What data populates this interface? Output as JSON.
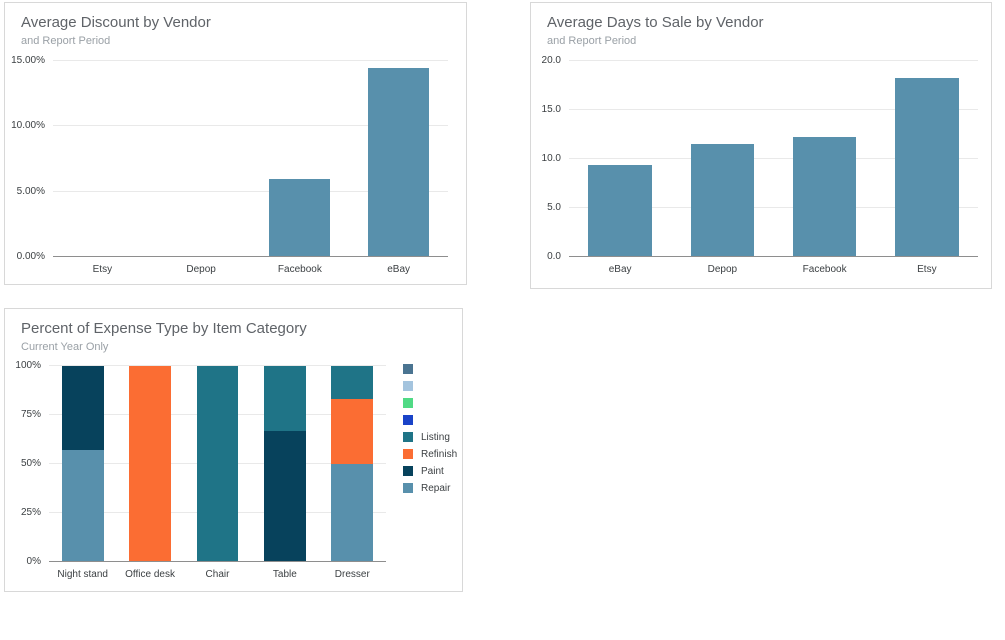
{
  "page": {
    "background": "#ffffff",
    "card_border": "#d8d8d8",
    "title_color": "#5f6368",
    "subtitle_color": "#9aa0a6",
    "axis_label_color": "#3c4043",
    "gridline_color": "#e9e9e9",
    "axis_line_color": "#8e8e8e"
  },
  "chart_data": [
    {
      "type": "bar",
      "title": "Average Discount by Vendor",
      "subtitle": "and Report Period",
      "categories": [
        "Etsy",
        "Depop",
        "Facebook",
        "eBay"
      ],
      "values": [
        0,
        0,
        6.0,
        14.5
      ],
      "bar_color": "#5890ac",
      "ylim": [
        0,
        15
      ],
      "yticks": [
        {
          "value": 0,
          "label": "0.00%"
        },
        {
          "value": 5,
          "label": "5.00%"
        },
        {
          "value": 10,
          "label": "10.00%"
        },
        {
          "value": 15,
          "label": "15.00%"
        }
      ],
      "grid": true,
      "legend": null
    },
    {
      "type": "bar",
      "title": "Average Days to Sale by Vendor",
      "subtitle": "and Report Period",
      "categories": [
        "eBay",
        "Depop",
        "Facebook",
        "Etsy"
      ],
      "values": [
        9.4,
        11.5,
        12.2,
        18.3
      ],
      "bar_color": "#5890ac",
      "ylim": [
        0,
        20
      ],
      "yticks": [
        {
          "value": 0,
          "label": "0.0"
        },
        {
          "value": 5,
          "label": "5.0"
        },
        {
          "value": 10,
          "label": "10.0"
        },
        {
          "value": 15,
          "label": "15.0"
        },
        {
          "value": 20,
          "label": "20.0"
        }
      ],
      "grid": true,
      "legend": null
    },
    {
      "type": "bar",
      "stacked": true,
      "title": "Percent of Expense Type by Item Category",
      "subtitle": "Current Year Only",
      "categories": [
        "Night stand",
        "Office desk",
        "Chair",
        "Table",
        "Dresser"
      ],
      "series": [
        {
          "name": "Repair",
          "color": "#5890ac",
          "values": [
            57,
            0,
            0,
            0,
            50
          ]
        },
        {
          "name": "Refinish",
          "color": "#fb6d33",
          "values": [
            0,
            100,
            0,
            0,
            33.3
          ]
        },
        {
          "name": "Paint",
          "color": "#07425c",
          "values": [
            43,
            0,
            0,
            66.7,
            0
          ]
        },
        {
          "name": "Listing",
          "color": "#1f7487",
          "values": [
            0,
            0,
            100,
            33.3,
            16.7
          ]
        }
      ],
      "ylim": [
        0,
        100
      ],
      "yticks": [
        {
          "value": 0,
          "label": "0%"
        },
        {
          "value": 25,
          "label": "25%"
        },
        {
          "value": 50,
          "label": "50%"
        },
        {
          "value": 75,
          "label": "75%"
        },
        {
          "value": 100,
          "label": "100%"
        }
      ],
      "grid": true,
      "legend": {
        "position": "right",
        "entries": [
          {
            "label": "",
            "color": "#4a7491"
          },
          {
            "label": "",
            "color": "#a4c4de"
          },
          {
            "label": "",
            "color": "#50da85"
          },
          {
            "label": "",
            "color": "#1a43c8"
          },
          {
            "label": "Listing",
            "color": "#1f7487"
          },
          {
            "label": "Refinish",
            "color": "#fb6d33"
          },
          {
            "label": "Paint",
            "color": "#07425c"
          },
          {
            "label": "Repair",
            "color": "#5890ac"
          }
        ]
      }
    }
  ]
}
